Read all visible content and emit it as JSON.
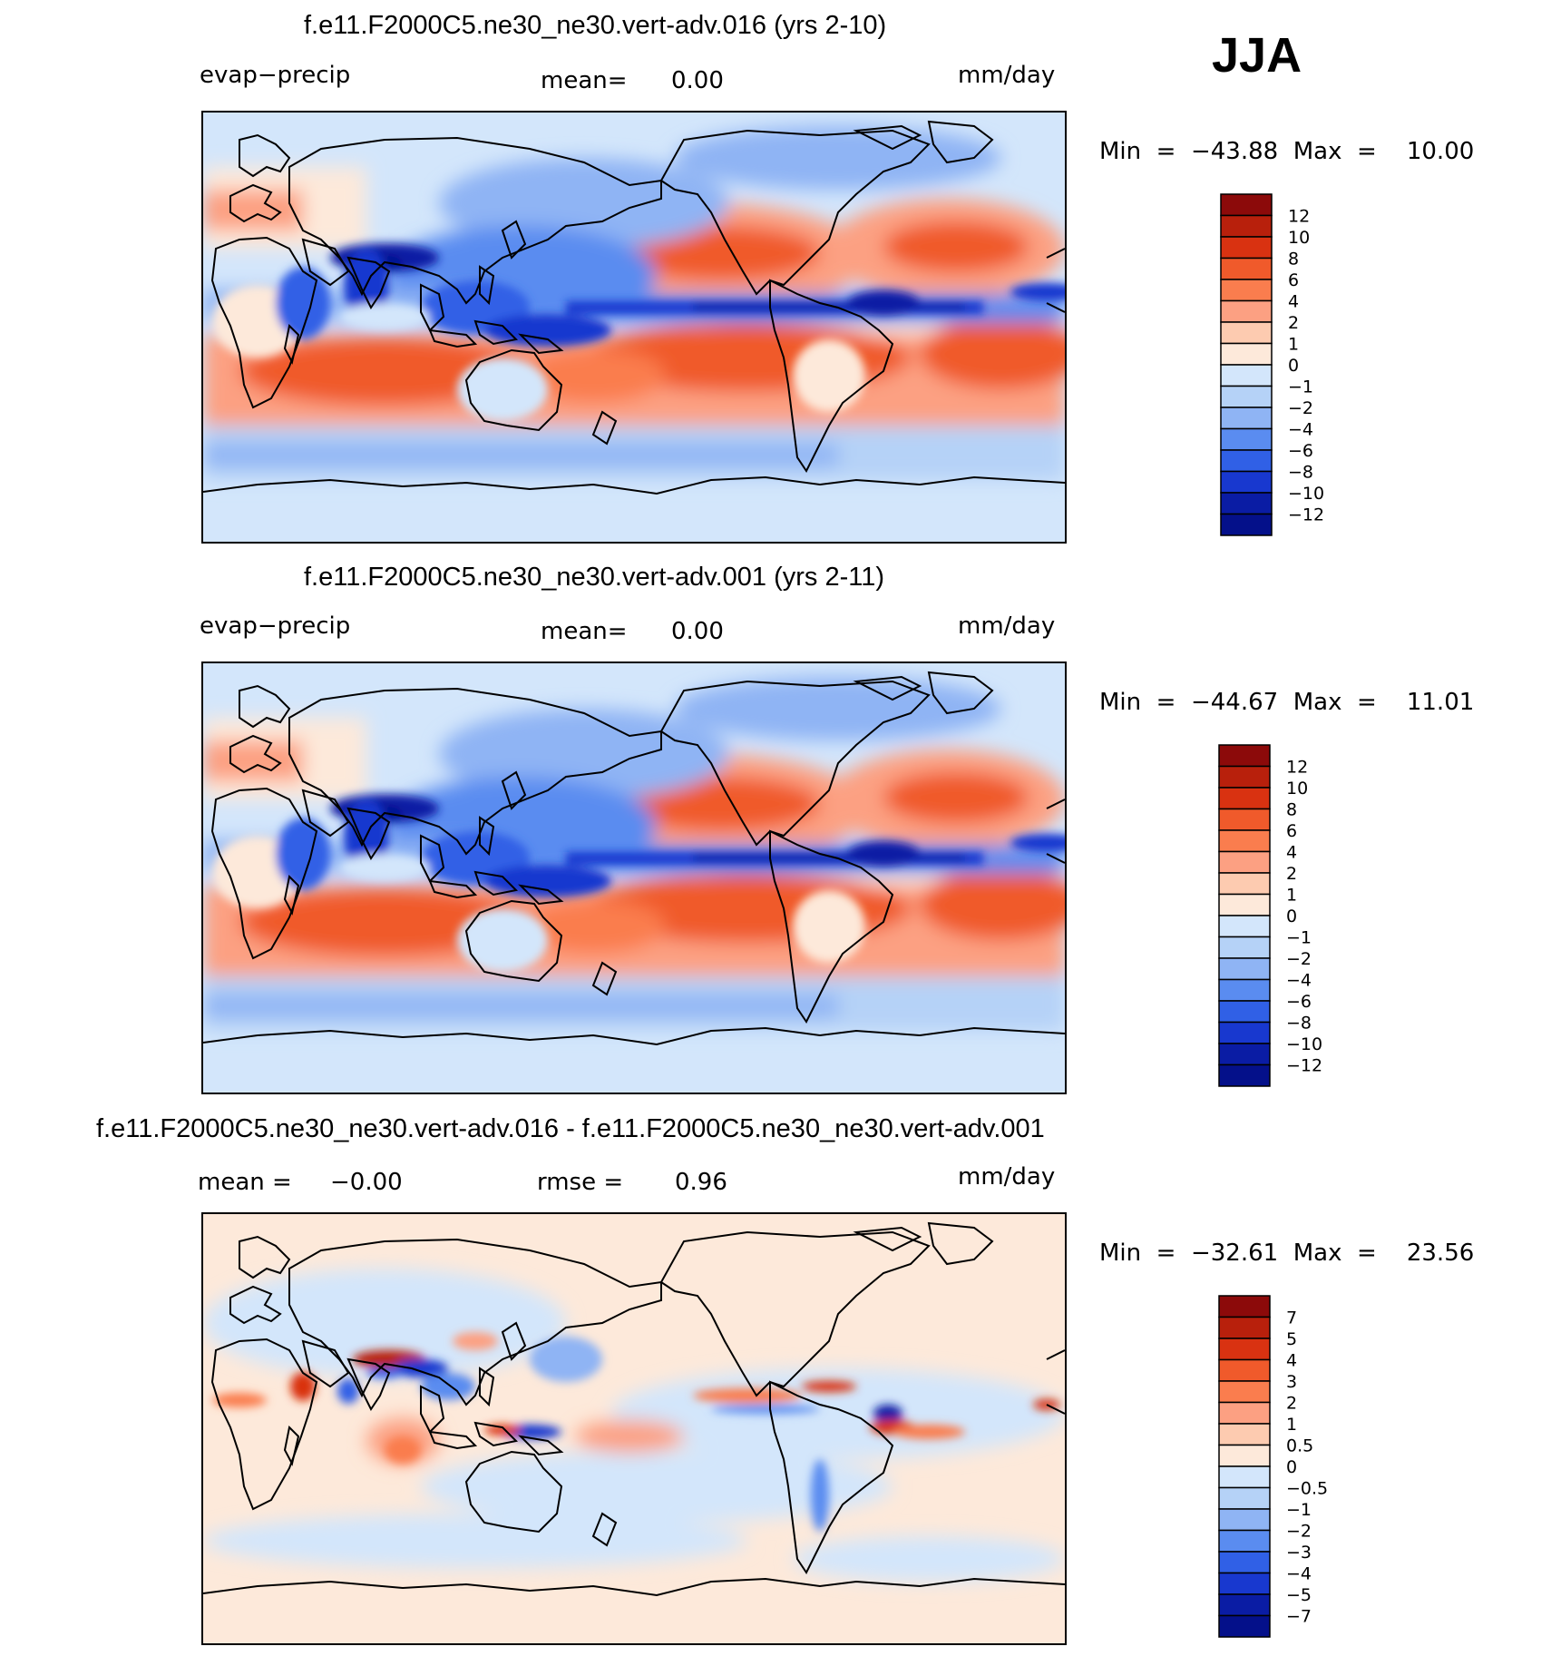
{
  "season": "JJA",
  "panels": [
    {
      "title": "f.e11.F2000C5.ne30_ne30.vert-adv.016 (yrs 2-10)",
      "left_label": "evap−precip",
      "mean_label": "mean=",
      "mean_value": "0.00",
      "units": "mm/day",
      "minmax": "Min  =  −43.88  Max  =    10.00",
      "colorbar_ticks": [
        "12",
        "10",
        "8",
        "6",
        "4",
        "2",
        "1",
        "0",
        "−1",
        "−2",
        "−4",
        "−6",
        "−8",
        "−10",
        "−12"
      ]
    },
    {
      "title": "f.e11.F2000C5.ne30_ne30.vert-adv.001 (yrs 2-11)",
      "left_label": "evap−precip",
      "mean_label": "mean=",
      "mean_value": "0.00",
      "units": "mm/day",
      "minmax": "Min  =  −44.67  Max  =    11.01",
      "colorbar_ticks": [
        "12",
        "10",
        "8",
        "6",
        "4",
        "2",
        "1",
        "0",
        "−1",
        "−2",
        "−4",
        "−6",
        "−8",
        "−10",
        "−12"
      ]
    },
    {
      "title": "f.e11.F2000C5.ne30_ne30.vert-adv.016 - f.e11.F2000C5.ne30_ne30.vert-adv.001",
      "mean_label": "mean  =",
      "mean_value": "−0.00",
      "rmse_label": "rmse  =",
      "rmse_value": "0.96",
      "units": "mm/day",
      "minmax": "Min  =  −32.61  Max  =    23.56",
      "colorbar_ticks": [
        "7",
        "5",
        "4",
        "3",
        "2",
        "1",
        "0.5",
        "0",
        "−0.5",
        "−1",
        "−2",
        "−3",
        "−4",
        "−5",
        "−7"
      ]
    }
  ],
  "colors": {
    "scale": [
      "#8c0a0a",
      "#b8200c",
      "#d93211",
      "#f05a2b",
      "#fa7d4e",
      "#fca082",
      "#fdcbb0",
      "#fde9da",
      "#d3e6fb",
      "#b5d2f7",
      "#8fb4f4",
      "#5a8cf0",
      "#3060e6",
      "#1838cf",
      "#0a1ca4",
      "#04108a"
    ],
    "coast": "#000000"
  }
}
